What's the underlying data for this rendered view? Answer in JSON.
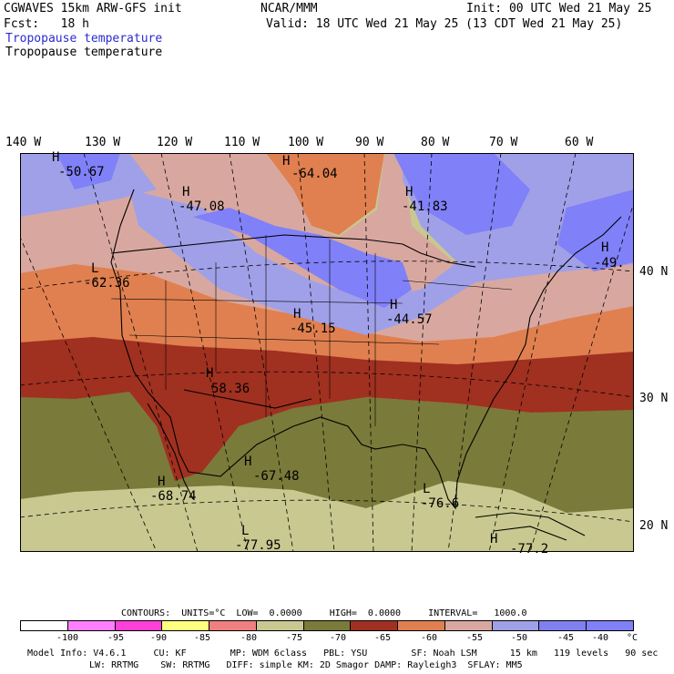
{
  "header": {
    "line1_left": "CGWAVES 15km ARW-GFS init",
    "line1_center": "NCAR/MMM",
    "line1_right": "Init: 00 UTC Wed 21 May 25",
    "line2_left": "Fcst:   18 h",
    "line2_right": "Valid: 18 UTC Wed 21 May 25 (13 CDT Wed 21 May 25)",
    "field_blue": "Tropopause temperature",
    "field_black": "Tropopause temperature"
  },
  "lon_labels": [
    "140 W",
    "130 W",
    "120 W",
    "110 W",
    "100 W",
    "90 W",
    "80 W",
    "70 W",
    "60 W"
  ],
  "lat_labels": [
    "40 N",
    "30 N",
    "20 N"
  ],
  "extrema": [
    {
      "type": "H",
      "value": "-50.67"
    },
    {
      "type": "H",
      "value": "-64.04"
    },
    {
      "type": "H",
      "value": "-47.08"
    },
    {
      "type": "H",
      "value": "-41.83"
    },
    {
      "type": "H",
      "value": "-49."
    },
    {
      "type": "L",
      "value": "-62.36"
    },
    {
      "type": "H",
      "value": "-45.15"
    },
    {
      "type": "H",
      "value": "-44.57"
    },
    {
      "type": "H",
      "value": "58.36"
    },
    {
      "type": "H",
      "value": "-67.48"
    },
    {
      "type": "H",
      "value": "-68.74"
    },
    {
      "type": "L",
      "value": "-76.6"
    },
    {
      "type": "L",
      "value": "-77.95"
    },
    {
      "type": "H",
      "value": "-77.2"
    }
  ],
  "contour_info": "CONTOURS:  UNITS=°C  LOW=  0.0000     HIGH=  0.0000     INTERVAL=   1000.0",
  "colorbar": {
    "colors": [
      "#ffffff",
      "#ff7fff",
      "#ff40d8",
      "#ffff80",
      "#f08080",
      "#c8c890",
      "#7a7a3a",
      "#a03020",
      "#e08050",
      "#d8a8a0",
      "#a0a0e8",
      "#8080f0",
      "#8080f8"
    ],
    "labels": [
      "-100",
      "-95",
      "-90",
      "-85",
      "-80",
      "-75",
      "-70",
      "-65",
      "-60",
      "-55",
      "-50",
      "-45",
      "-40",
      "°C"
    ]
  },
  "footer": {
    "line1": "Model Info: V4.6.1     CU: KF        MP: WDM 6class   PBL: YSU        SF: Noah LSM      15 km   119 levels   90 sec",
    "line2": "LW: RRTMG    SW: RRTMG   DIFF: simple KM: 2D Smagor DAMP: Rayleigh3  SFLAY: MM5"
  },
  "colors": {
    "dark_olive": "#7a7a3a",
    "light_olive": "#c8c890",
    "dark_red": "#a03020",
    "orange": "#e08050",
    "pink": "#d8a8a0",
    "lavender": "#a0a0e8",
    "blue": "#8080f8"
  }
}
